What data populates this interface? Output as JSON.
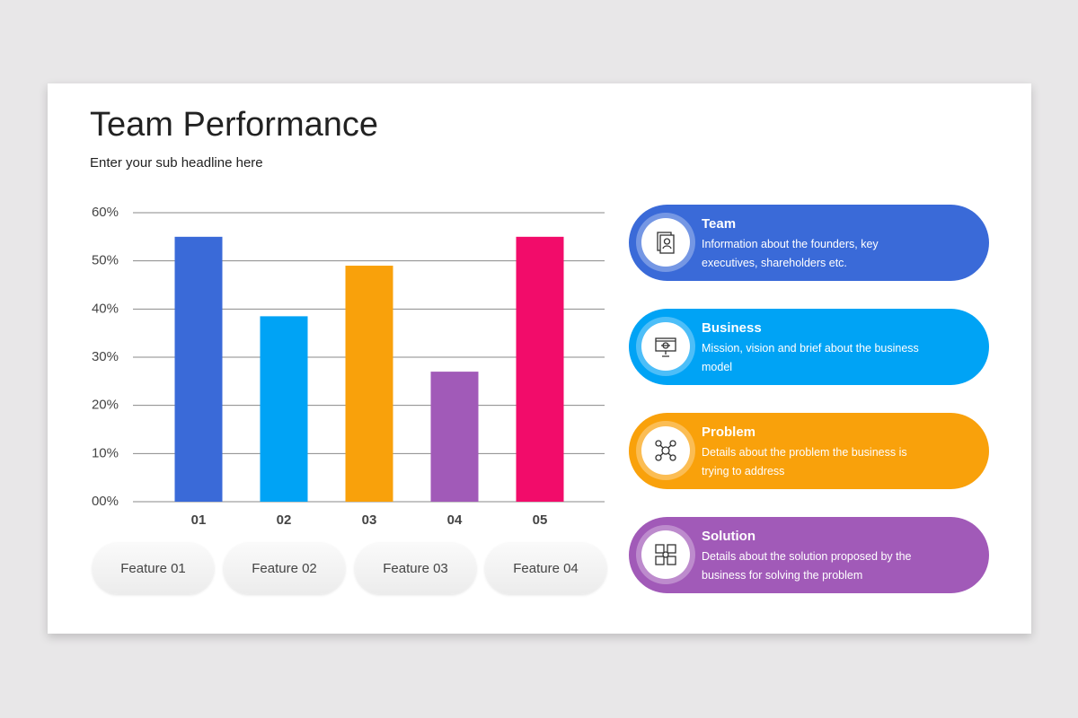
{
  "header": {
    "title": "Team Performance",
    "subtitle": "Enter your sub headline here"
  },
  "chart_data": {
    "type": "bar",
    "categories": [
      "01",
      "02",
      "03",
      "04",
      "05"
    ],
    "values": [
      55,
      38.5,
      49,
      27,
      55
    ],
    "colors": [
      "#3a6ad8",
      "#00a3f5",
      "#f9a10b",
      "#a15ab8",
      "#f20c6a"
    ],
    "ylim": [
      0,
      60
    ],
    "yticks": [
      {
        "value": 0,
        "label": "00%"
      },
      {
        "value": 10,
        "label": "10%"
      },
      {
        "value": 20,
        "label": "20%"
      },
      {
        "value": 30,
        "label": "30%"
      },
      {
        "value": 40,
        "label": "40%"
      },
      {
        "value": 50,
        "label": "50%"
      },
      {
        "value": 60,
        "label": "60%"
      }
    ],
    "grid": true
  },
  "features": [
    "Feature 01",
    "Feature 02",
    "Feature 03",
    "Feature 04"
  ],
  "cards": [
    {
      "title": "Team",
      "text": "Information about the founders, key executives,  shareholders etc.",
      "color": "#3a6ad8"
    },
    {
      "title": "Business",
      "text": "Mission, vision and brief about the business model",
      "color": "#00a3f5"
    },
    {
      "title": "Problem",
      "text": "Details about the problem the business is trying to address",
      "color": "#f9a10b"
    },
    {
      "title": "Solution",
      "text": "Details about the solution proposed by the business for solving the problem",
      "color": "#a15ab8"
    }
  ]
}
